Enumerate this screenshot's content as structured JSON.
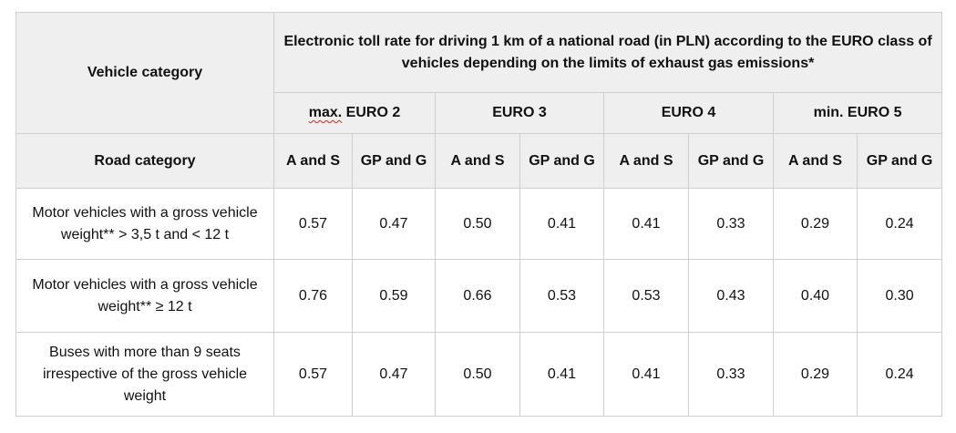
{
  "table": {
    "vehicle_category_label": "Vehicle category",
    "rate_header": "Electronic toll rate for driving 1 km of a national road (in PLN) according to the EURO class of vehicles depending on the limits of exhaust gas emissions*",
    "euro_classes": [
      {
        "prefix": "max.",
        "label": "EURO 2"
      },
      {
        "prefix": "",
        "label": "EURO 3"
      },
      {
        "prefix": "",
        "label": "EURO 4"
      },
      {
        "prefix": "",
        "label": "min. EURO 5"
      }
    ],
    "road_category_label": "Road category",
    "road_types": [
      "A and S",
      "GP and G",
      "A and S",
      "GP and G",
      "A and S",
      "GP and G",
      "A and S",
      "GP and G"
    ],
    "rows": [
      {
        "vehicle": "Motor vehicles with a gross vehicle weight** > 3,5 t and < 12 t",
        "values": [
          "0.57",
          "0.47",
          "0.50",
          "0.41",
          "0.41",
          "0.33",
          "0.29",
          "0.24"
        ]
      },
      {
        "vehicle": "Motor vehicles with a gross vehicle weight** ≥ 12 t",
        "values": [
          "0.76",
          "0.59",
          "0.66",
          "0.53",
          "0.53",
          "0.43",
          "0.40",
          "0.30"
        ]
      },
      {
        "vehicle": "Buses with more than 9 seats irrespective of the gross vehicle weight",
        "values": [
          "0.57",
          "0.47",
          "0.50",
          "0.41",
          "0.41",
          "0.33",
          "0.29",
          "0.24"
        ]
      }
    ]
  }
}
